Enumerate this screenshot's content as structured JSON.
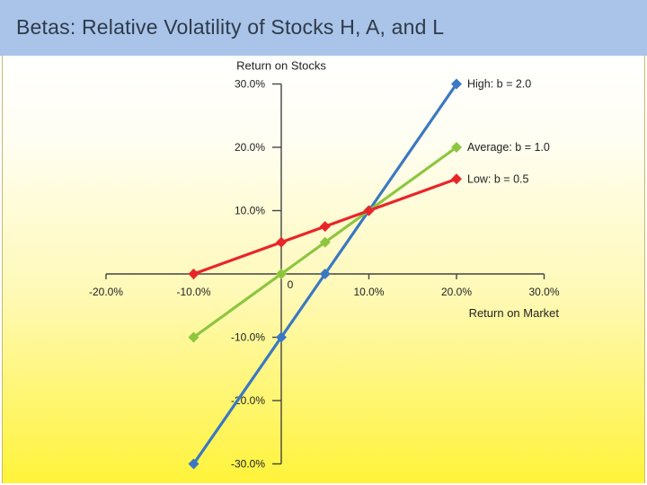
{
  "page": {
    "title": "Betas: Relative Volatility of Stocks H, A, and L"
  },
  "colors": {
    "title_bar": "#a9c4e8",
    "title_text": "#2f3a4a",
    "background_top": "#ffffff",
    "background_bottom": "#fff33a"
  },
  "chart_data": {
    "type": "line",
    "title": "",
    "xlabel": "Return on Market",
    "ylabel": "Return on Stocks",
    "xlim": [
      -20,
      30
    ],
    "ylim": [
      -30,
      30
    ],
    "x_ticks": [
      -20,
      -10,
      10,
      20,
      30
    ],
    "x_tick_labels": [
      "-20.0%",
      "-10.0%",
      "10.0%",
      "20.0%",
      "30.0%"
    ],
    "y_ticks": [
      -30,
      -20,
      -10,
      10,
      20,
      30
    ],
    "y_tick_labels": [
      "-30.0%",
      "-20.0%",
      "-10.0%",
      "10.0%",
      "20.0%",
      "30.0%"
    ],
    "origin_label": "0",
    "grid": false,
    "series": [
      {
        "name": "High: b = 2.0",
        "color": "#3a78c2",
        "x": [
          -10,
          0,
          5,
          10,
          20
        ],
        "y": [
          -30,
          -10,
          0,
          10,
          30
        ]
      },
      {
        "name": "Average: b = 1.0",
        "color": "#8cc63f",
        "x": [
          -10,
          0,
          5,
          10,
          20
        ],
        "y": [
          -10,
          0,
          5,
          10,
          20
        ]
      },
      {
        "name": "Low: b = 0.5",
        "color": "#e8262a",
        "x": [
          -10,
          0,
          5,
          10,
          20
        ],
        "y": [
          0,
          5,
          7.5,
          10,
          15
        ]
      }
    ]
  }
}
